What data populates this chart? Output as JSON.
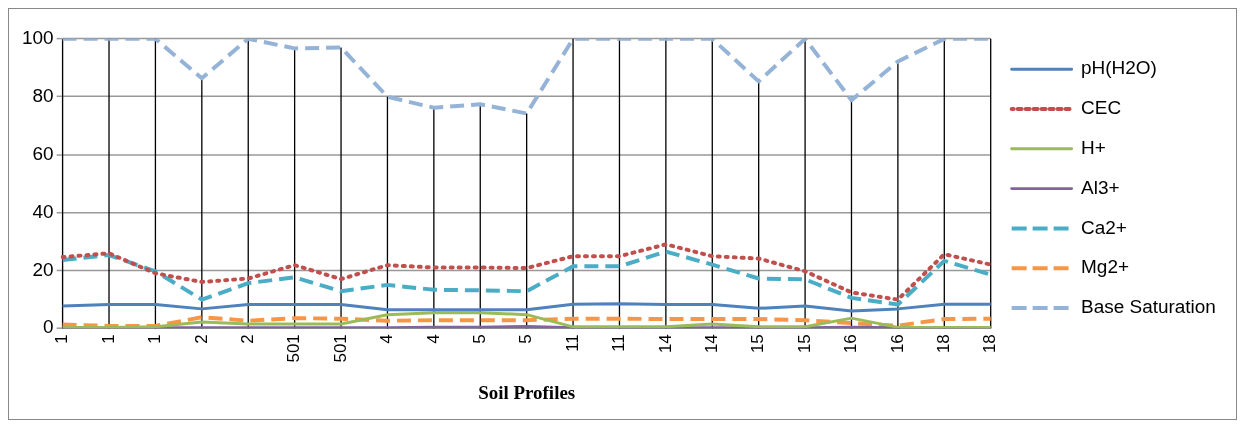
{
  "chart_data": {
    "type": "line",
    "xlabel": "Soil Profiles",
    "categories": [
      "1",
      "1",
      "1",
      "2",
      "2",
      "501",
      "501",
      "4",
      "4",
      "5",
      "5",
      "11",
      "11",
      "14",
      "14",
      "15",
      "15",
      "16",
      "16",
      "18",
      "18"
    ],
    "series": [
      {
        "name": "pH(H2O)",
        "color": "#4f81bd",
        "line_style": "solid",
        "values": [
          7.7,
          8.2,
          8.2,
          6.7,
          8.2,
          8.2,
          8.2,
          6.4,
          6.4,
          6.4,
          6.4,
          8.3,
          8.5,
          8.2,
          8.2,
          6.9,
          7.7,
          6.0,
          6.7,
          8.3,
          8.3
        ]
      },
      {
        "name": "CEC",
        "color": "#c0504d",
        "line_style": "dotted",
        "values": [
          24.6,
          25.9,
          19,
          16,
          17.2,
          21.8,
          17,
          21.8,
          21,
          21,
          20.8,
          24.9,
          24.9,
          29,
          24.9,
          24.1,
          19.7,
          12.4,
          9.9,
          25.6,
          22
        ]
      },
      {
        "name": "H+",
        "color": "#9bbb59",
        "line_style": "solid",
        "values": [
          0.3,
          0.3,
          0.5,
          2.2,
          1.5,
          1.5,
          1.5,
          4.7,
          5.4,
          5.4,
          4.7,
          0.5,
          0.5,
          0.5,
          1.5,
          0.5,
          0.5,
          3.5,
          0.3,
          0.3,
          0.3
        ]
      },
      {
        "name": "Al3+",
        "color": "#8064a2",
        "line_style": "solid",
        "values": [
          0.2,
          0.2,
          0.2,
          0.2,
          0.2,
          0.2,
          0.2,
          0.2,
          0.4,
          0.4,
          0.6,
          0.2,
          0.2,
          0.2,
          0.2,
          0.2,
          0.2,
          0.4,
          0.2,
          0.2,
          0.2
        ]
      },
      {
        "name": "Ca2+",
        "color": "#4bacc6",
        "line_style": "dashed",
        "values": [
          23.6,
          25.3,
          19.7,
          9.9,
          15.6,
          17.6,
          12.8,
          15,
          13.3,
          13.1,
          12.8,
          21.4,
          21.4,
          26.5,
          22,
          17.2,
          16.9,
          10.5,
          8.2,
          23.3,
          18.5
        ]
      },
      {
        "name": "Mg2+",
        "color": "#f79646",
        "line_style": "dashed",
        "values": [
          1.3,
          0.8,
          0.8,
          3.8,
          2.6,
          3.5,
          3.3,
          2.6,
          2.8,
          2.8,
          2.8,
          3.3,
          3.3,
          3.2,
          3.2,
          3.2,
          2.8,
          1.8,
          0.9,
          3.2,
          3.3
        ]
      },
      {
        "name": "Base Saturation",
        "color": "#95b3d7",
        "line_style": "dashed",
        "values": [
          100,
          100,
          100,
          86.4,
          100,
          96.7,
          97,
          80,
          76.2,
          77.4,
          74.2,
          100,
          100,
          100,
          100,
          85.3,
          100,
          78.8,
          92.2,
          100,
          100
        ]
      }
    ],
    "ylim": [
      0,
      100
    ],
    "yticks": [
      0,
      20,
      40,
      60,
      80,
      100
    ],
    "grid": true,
    "legend": "right",
    "marker": "none"
  }
}
